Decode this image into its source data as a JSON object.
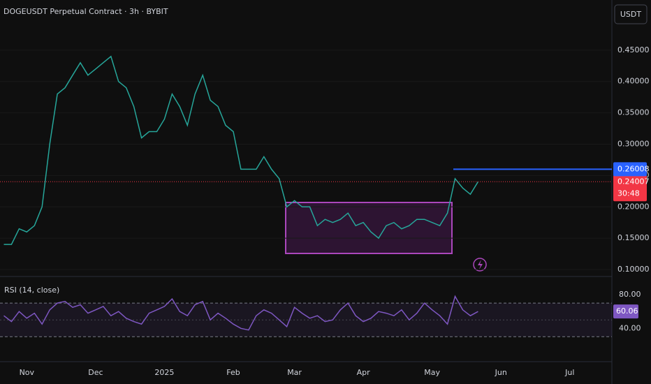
{
  "chart_data": [
    {
      "type": "line",
      "title": "DOGEUSDT Perpetual Contract · 3h · BYBIT",
      "currency_button": "USDT",
      "categories": [
        null,
        null,
        null,
        "Nov",
        null,
        null,
        null,
        null,
        null,
        null,
        null,
        null,
        "Dec",
        null,
        null,
        null,
        null,
        null,
        null,
        null,
        null,
        "2025",
        null,
        null,
        null,
        null,
        null,
        null,
        null,
        null,
        "Feb",
        null,
        null,
        null,
        null,
        null,
        null,
        null,
        "Mar",
        null,
        null,
        null,
        null,
        null,
        null,
        null,
        null,
        "Apr",
        null,
        null,
        null,
        null,
        null,
        null,
        null,
        null,
        "May",
        null,
        null,
        null,
        null,
        null,
        null,
        null,
        null,
        "Jun",
        null,
        null,
        null,
        null,
        null,
        null,
        null,
        null,
        "Jul",
        null,
        null,
        null,
        null,
        null
      ],
      "series": [
        {
          "name": "DOGEUSDT",
          "color": "#26a69a",
          "values": [
            0.14,
            0.14,
            0.165,
            0.16,
            0.17,
            0.2,
            0.3,
            0.38,
            0.39,
            0.41,
            0.43,
            0.41,
            0.42,
            0.43,
            0.44,
            0.4,
            0.39,
            0.36,
            0.31,
            0.32,
            0.32,
            0.34,
            0.38,
            0.36,
            0.33,
            0.38,
            0.41,
            0.37,
            0.36,
            0.33,
            0.32,
            0.26,
            0.26,
            0.26,
            0.28,
            0.26,
            0.245,
            0.2,
            0.21,
            0.2,
            0.2,
            0.17,
            0.18,
            0.175,
            0.18,
            0.19,
            0.17,
            0.175,
            0.16,
            0.15,
            0.17,
            0.175,
            0.165,
            0.17,
            0.18,
            0.18,
            0.175,
            0.17,
            0.19,
            0.245,
            0.23,
            0.22,
            0.24,
            null,
            null,
            null,
            null,
            null,
            null,
            null,
            null,
            null,
            null,
            null,
            null,
            null,
            null,
            null,
            null,
            null
          ]
        }
      ],
      "ylim": [
        0.09,
        0.53
      ],
      "yticks": [
        {
          "value": 0.1,
          "label": "0.10000"
        },
        {
          "value": 0.15,
          "label": "0.15000"
        },
        {
          "value": 0.2,
          "label": "0.20000"
        },
        {
          "value": 0.25,
          "label": "0.25000"
        },
        {
          "value": 0.3,
          "label": "0.30000"
        },
        {
          "value": 0.35,
          "label": "0.35000"
        },
        {
          "value": 0.4,
          "label": "0.40000"
        },
        {
          "value": 0.45,
          "label": "0.45000"
        }
      ],
      "horizontal_line": 0.26008,
      "horizontal_line_color": "#2962ff",
      "last_price": 0.24007,
      "last_price_color": "#f23645",
      "countdown": "30:48"
    },
    {
      "type": "line",
      "title": "RSI (14, close)",
      "series": [
        {
          "name": "RSI",
          "color": "#7e57c2",
          "values": [
            55,
            48,
            60,
            52,
            58,
            45,
            62,
            70,
            72,
            65,
            68,
            58,
            62,
            66,
            55,
            60,
            52,
            48,
            45,
            58,
            62,
            66,
            75,
            60,
            55,
            68,
            72,
            50,
            58,
            52,
            45,
            40,
            38,
            55,
            62,
            58,
            50,
            42,
            65,
            58,
            52,
            55,
            48,
            50,
            62,
            70,
            55,
            48,
            52,
            60,
            58,
            55,
            62,
            50,
            58,
            70,
            62,
            55,
            45,
            78,
            62,
            55,
            60,
            null,
            null,
            null,
            null,
            null,
            null,
            null,
            null,
            null,
            null,
            null,
            null,
            null,
            null,
            null,
            null,
            null
          ]
        }
      ],
      "ylim": [
        7,
        100
      ],
      "yticks": [
        {
          "value": 80,
          "label": "80.00"
        },
        {
          "value": 40,
          "label": "40.00"
        }
      ],
      "band": [
        30,
        70
      ],
      "midline": 50,
      "last_value": 60.06
    }
  ]
}
